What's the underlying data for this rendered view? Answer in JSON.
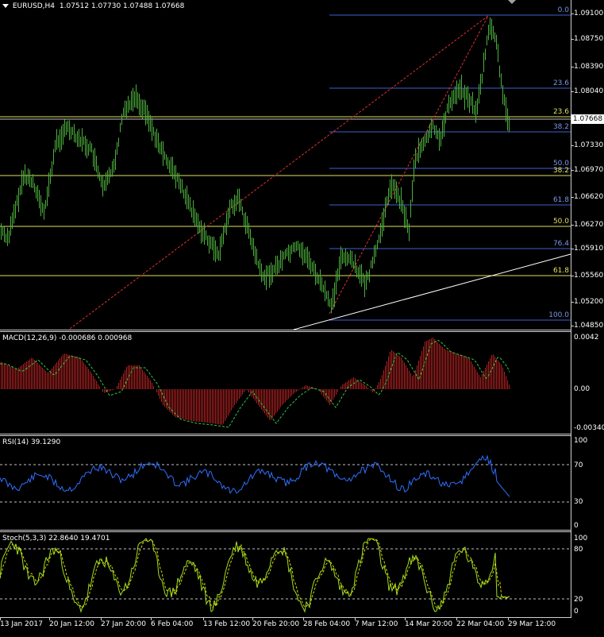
{
  "header": {
    "symbol": "EURUSD,H4",
    "ohlc": "1.07512 1.07730 1.07488 1.07668",
    "menu_arrow": "triangle-down-icon"
  },
  "price_axis": {
    "labels": [
      "1.09100",
      "1.08750",
      "1.08390",
      "1.08040",
      "1.07330",
      "1.06970",
      "1.06620",
      "1.06270",
      "1.05910",
      "1.05560",
      "1.05200",
      "1.04850"
    ],
    "current_price": "1.07668"
  },
  "fibo_blue": [
    "0.0",
    "23.6",
    "38.2",
    "50.0",
    "61.8",
    "76.4",
    "100.0"
  ],
  "fibo_yellow": [
    "23.6",
    "38.2",
    "50.0",
    "61.8"
  ],
  "macd": {
    "title": "MACD(12,26,9) -0.000686 0.000968",
    "axis_labels": [
      "0.0042",
      "0.00",
      "-0.00340"
    ]
  },
  "rsi": {
    "title": "RSI(14) 39.1290",
    "axis_labels": [
      "100",
      "70",
      "30",
      "0"
    ]
  },
  "stoch": {
    "title": "Stoch(5,3,3) 22.8640 19.4701",
    "axis_labels": [
      "100",
      "80",
      "20",
      "0"
    ]
  },
  "time_axis": [
    "13 Jan 2017",
    "20 Jan 12:00",
    "27 Jan 20:00",
    "6 Feb 04:00",
    "13 Feb 12:00",
    "20 Feb 20:00",
    "28 Feb 04:00",
    "7 Mar 12:00",
    "14 Mar 20:00",
    "22 Mar 04:00",
    "29 Mar 12:00"
  ],
  "colors": {
    "candles": "#4caf3c",
    "macd_hist": "#b22222",
    "macd_signal": "#2ecc40",
    "rsi_line": "#2f6fff",
    "stoch_main": "#a0e020",
    "stoch_signal": "#d4d400",
    "fibo_blue": "#4060d0",
    "fibo_yellow": "#e0e060",
    "trend_red": "#e03030",
    "trend_white": "#ffffff"
  }
}
